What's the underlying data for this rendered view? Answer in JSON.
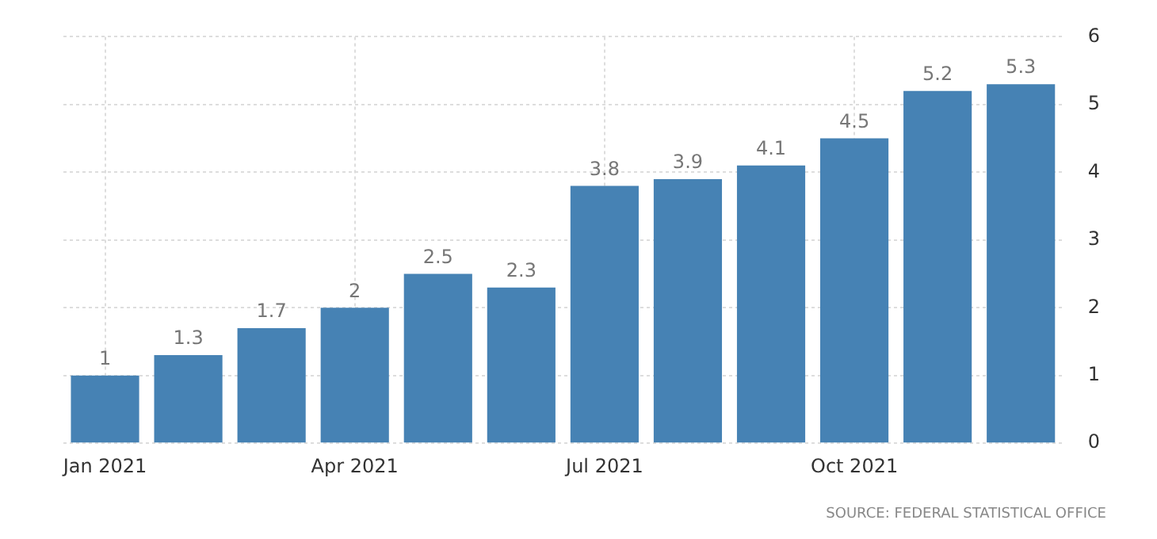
{
  "chart_data": {
    "type": "bar",
    "categories": [
      "Jan 2021",
      null,
      null,
      "Apr 2021",
      null,
      null,
      "Jul 2021",
      null,
      null,
      "Oct 2021",
      null,
      null
    ],
    "values": [
      1,
      1.3,
      1.7,
      2,
      2.5,
      2.3,
      3.8,
      3.9,
      4.1,
      4.5,
      5.2,
      5.3
    ],
    "color": "#4682b4",
    "ylim": [
      0,
      6
    ],
    "yticks": [
      0,
      1,
      2,
      3,
      4,
      5,
      6
    ],
    "grid": true,
    "data_labels": true,
    "legend": false,
    "annotations": [
      "SOURCE: FEDERAL STATISTICAL OFFICE"
    ]
  }
}
